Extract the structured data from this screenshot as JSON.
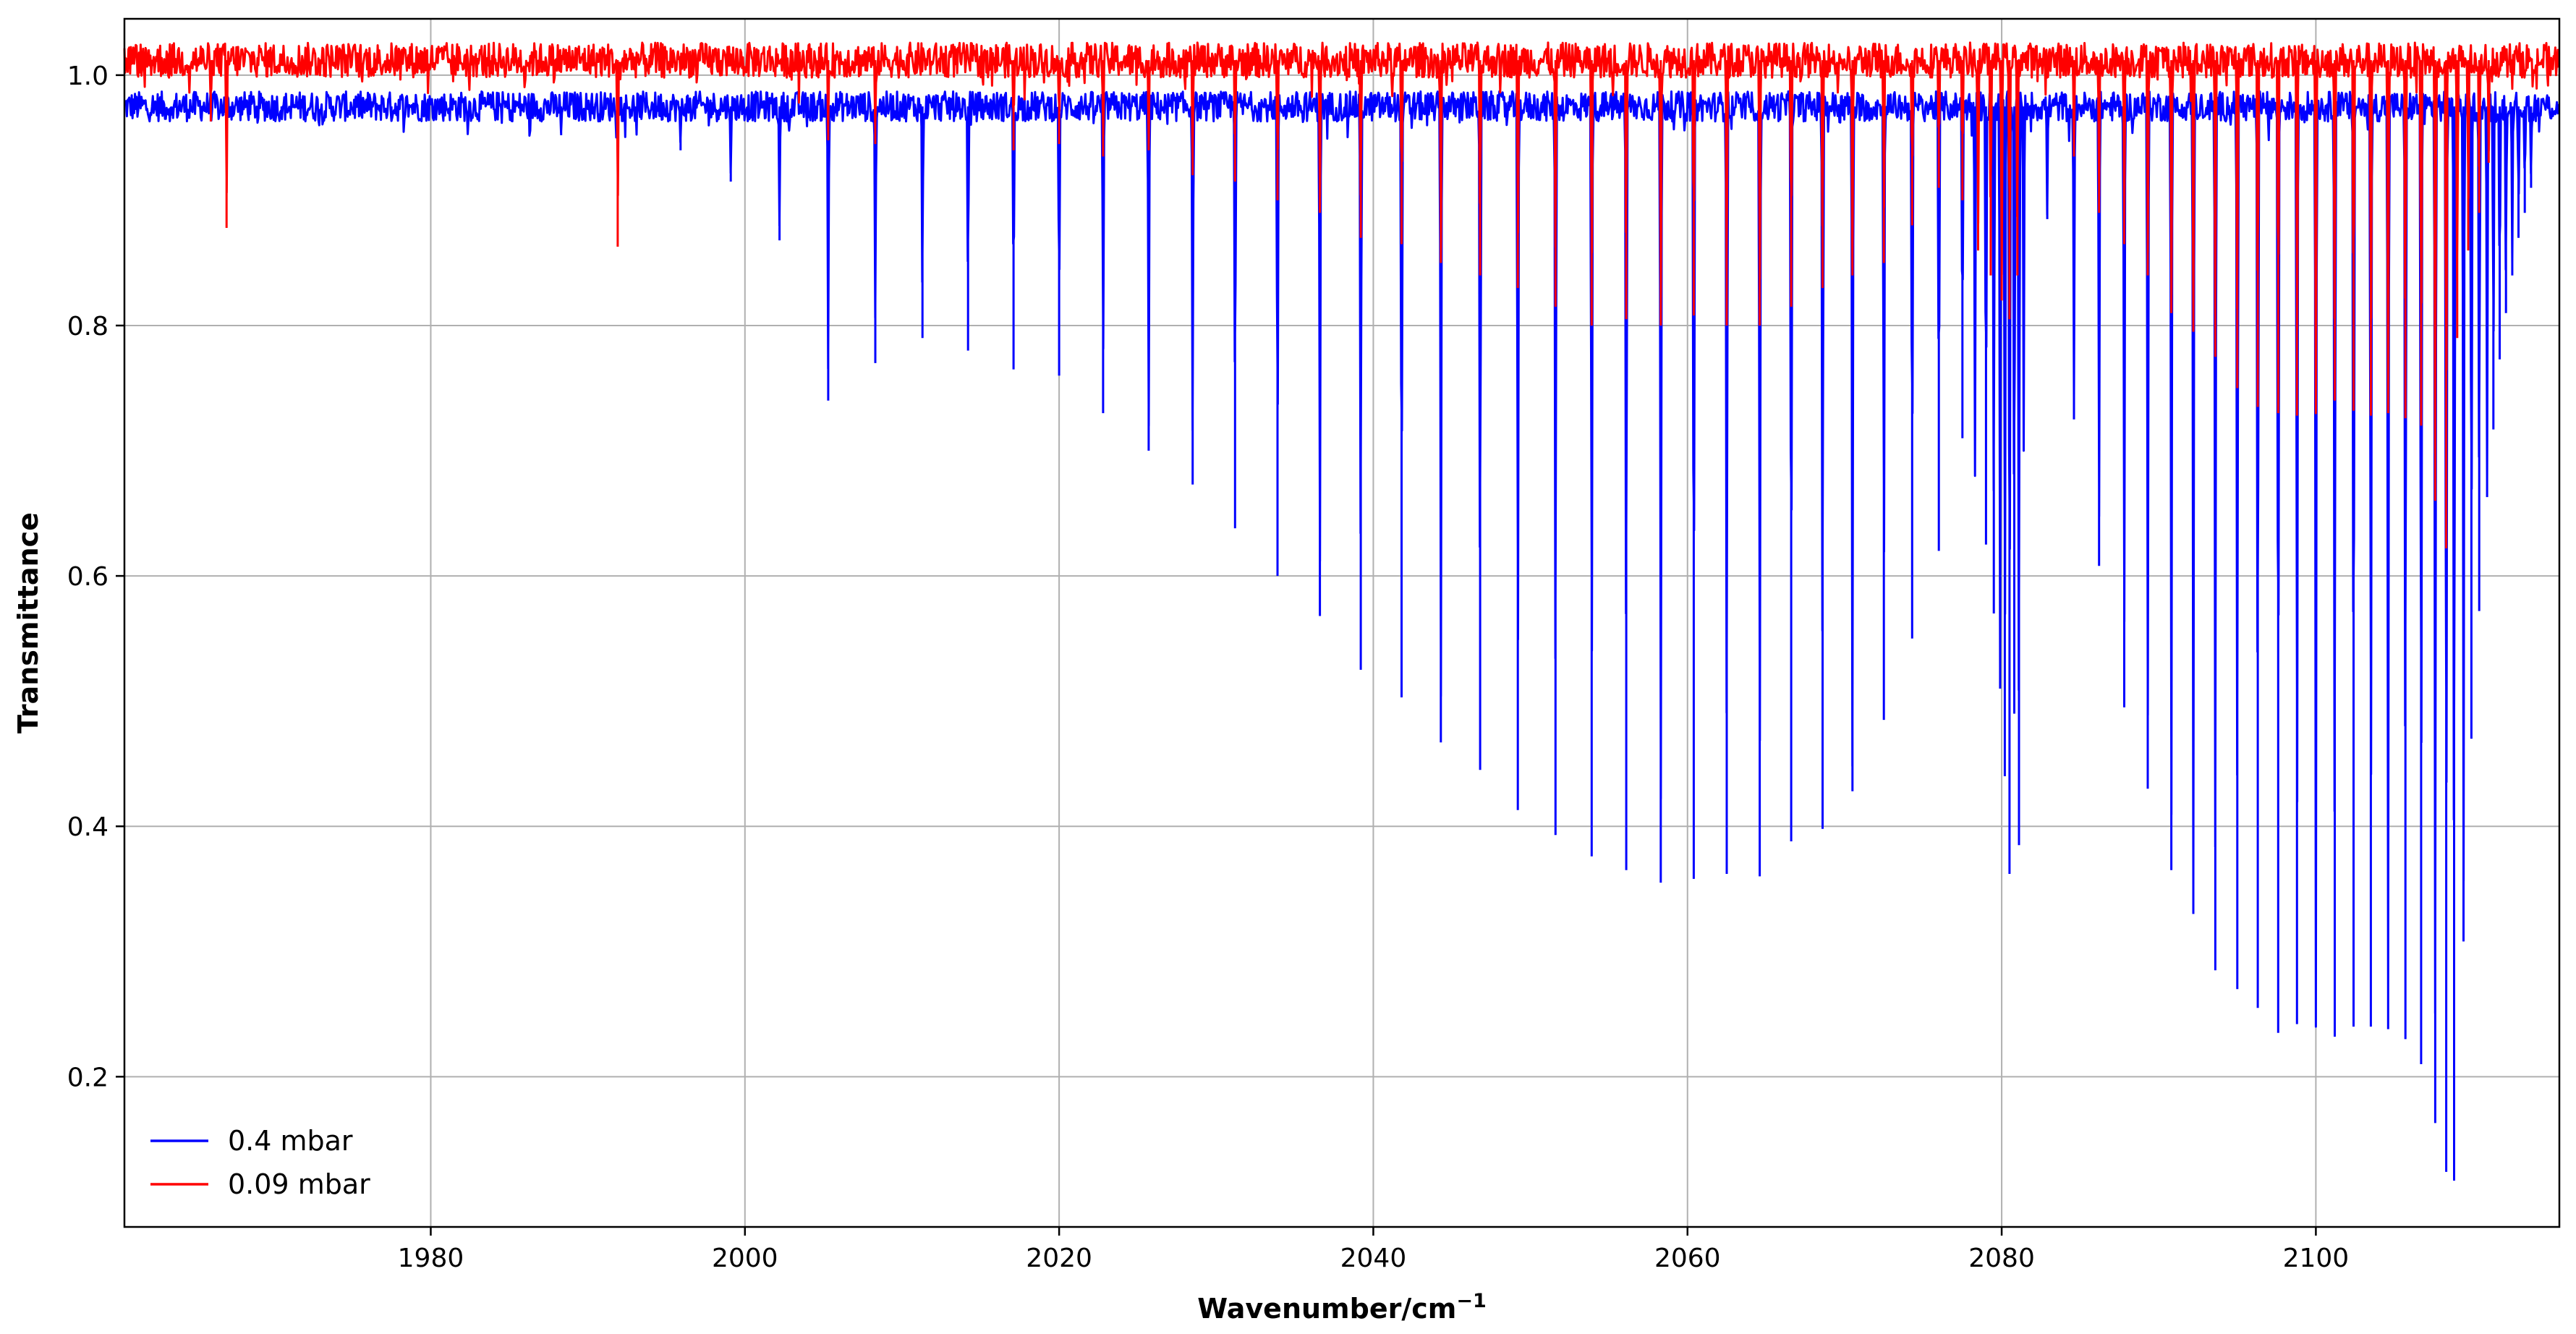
{
  "chart_data": {
    "type": "line",
    "xlabel": "Wavenumber/cm",
    "xlabel_sup": "−1",
    "ylabel": "Transmittance",
    "xlim": [
      1960.5,
      2115.5
    ],
    "ylim": [
      0.08,
      1.045
    ],
    "xticks": [
      1980,
      2000,
      2020,
      2040,
      2060,
      2080,
      2100
    ],
    "xtick_labels": [
      "1980",
      "2000",
      "2020",
      "2040",
      "2060",
      "2080",
      "2100"
    ],
    "yticks": [
      0.2,
      0.4,
      0.6,
      0.8,
      1.0
    ],
    "ytick_labels": [
      "0.2",
      "0.4",
      "0.6",
      "0.8",
      "1.0"
    ],
    "grid": true,
    "legend_position": "lower-left",
    "series": [
      {
        "name": "0.4 mbar",
        "color": "#0000ff",
        "baseline": 0.975,
        "noise_amplitude": 0.012,
        "lines": [
          [
            1963.5,
            0.968
          ],
          [
            1970.5,
            0.968
          ],
          [
            1977.5,
            0.963
          ],
          [
            1988.3,
            0.952
          ],
          [
            1993.0,
            0.963
          ],
          [
            1995.9,
            0.94
          ],
          [
            1999.1,
            0.915
          ],
          [
            2002.2,
            0.868
          ],
          [
            2005.3,
            0.74
          ],
          [
            2008.3,
            0.77
          ],
          [
            2011.3,
            0.79
          ],
          [
            2014.2,
            0.78
          ],
          [
            2017.1,
            0.765
          ],
          [
            2020.0,
            0.76
          ],
          [
            2022.8,
            0.73
          ],
          [
            2025.7,
            0.7
          ],
          [
            2028.5,
            0.673
          ],
          [
            2031.2,
            0.638
          ],
          [
            2033.9,
            0.6
          ],
          [
            2036.6,
            0.568
          ],
          [
            2039.2,
            0.525
          ],
          [
            2041.8,
            0.503
          ],
          [
            2044.3,
            0.467
          ],
          [
            2046.8,
            0.445
          ],
          [
            2049.2,
            0.413
          ],
          [
            2051.6,
            0.393
          ],
          [
            2053.9,
            0.376
          ],
          [
            2056.1,
            0.365
          ],
          [
            2058.3,
            0.355
          ],
          [
            2060.4,
            0.358
          ],
          [
            2062.5,
            0.362
          ],
          [
            2064.6,
            0.36
          ],
          [
            2066.6,
            0.388
          ],
          [
            2068.6,
            0.398
          ],
          [
            2070.5,
            0.428
          ],
          [
            2072.5,
            0.485
          ],
          [
            2074.3,
            0.55
          ],
          [
            2076.0,
            0.62
          ],
          [
            2077.5,
            0.71
          ],
          [
            2078.3,
            0.68
          ],
          [
            2079.0,
            0.625
          ],
          [
            2079.5,
            0.57
          ],
          [
            2079.9,
            0.51
          ],
          [
            2080.2,
            0.44
          ],
          [
            2080.5,
            0.362
          ],
          [
            2080.8,
            0.49
          ],
          [
            2081.1,
            0.385
          ],
          [
            2081.4,
            0.7
          ],
          [
            2082.9,
            0.885
          ],
          [
            2084.6,
            0.725
          ],
          [
            2086.2,
            0.608
          ],
          [
            2087.8,
            0.495
          ],
          [
            2089.3,
            0.43
          ],
          [
            2090.8,
            0.365
          ],
          [
            2092.2,
            0.33
          ],
          [
            2093.6,
            0.285
          ],
          [
            2095.0,
            0.27
          ],
          [
            2096.3,
            0.255
          ],
          [
            2097.6,
            0.235
          ],
          [
            2098.8,
            0.242
          ],
          [
            2100.0,
            0.24
          ],
          [
            2101.2,
            0.232
          ],
          [
            2102.4,
            0.24
          ],
          [
            2103.5,
            0.24
          ],
          [
            2104.6,
            0.238
          ],
          [
            2105.7,
            0.23
          ],
          [
            2106.7,
            0.21
          ],
          [
            2107.6,
            0.163
          ],
          [
            2108.3,
            0.124
          ],
          [
            2108.8,
            0.117
          ],
          [
            2109.4,
            0.308
          ],
          [
            2109.9,
            0.47
          ],
          [
            2110.4,
            0.572
          ],
          [
            2110.9,
            0.663
          ],
          [
            2111.3,
            0.717
          ],
          [
            2111.7,
            0.773
          ],
          [
            2112.1,
            0.81
          ],
          [
            2112.5,
            0.84
          ],
          [
            2112.9,
            0.87
          ],
          [
            2113.3,
            0.89
          ],
          [
            2113.7,
            0.91
          ]
        ]
      },
      {
        "name": "0.09 mbar",
        "color": "#ff0000",
        "baseline": 1.012,
        "noise_amplitude": 0.014,
        "lines": [
          [
            1966.0,
            0.963
          ],
          [
            1967.0,
            0.878
          ],
          [
            1991.9,
            0.863
          ],
          [
            2005.3,
            0.948
          ],
          [
            2008.3,
            0.945
          ],
          [
            2017.1,
            0.94
          ],
          [
            2020.0,
            0.945
          ],
          [
            2022.8,
            0.935
          ],
          [
            2025.7,
            0.94
          ],
          [
            2028.5,
            0.92
          ],
          [
            2031.2,
            0.915
          ],
          [
            2033.9,
            0.9
          ],
          [
            2036.6,
            0.89
          ],
          [
            2039.2,
            0.87
          ],
          [
            2041.8,
            0.865
          ],
          [
            2044.3,
            0.85
          ],
          [
            2046.8,
            0.84
          ],
          [
            2049.2,
            0.83
          ],
          [
            2051.6,
            0.815
          ],
          [
            2053.9,
            0.8
          ],
          [
            2056.1,
            0.805
          ],
          [
            2058.3,
            0.8
          ],
          [
            2060.4,
            0.808
          ],
          [
            2062.5,
            0.8
          ],
          [
            2064.6,
            0.8
          ],
          [
            2066.6,
            0.815
          ],
          [
            2068.6,
            0.83
          ],
          [
            2070.5,
            0.84
          ],
          [
            2072.5,
            0.85
          ],
          [
            2074.3,
            0.88
          ],
          [
            2076.0,
            0.91
          ],
          [
            2077.5,
            0.9
          ],
          [
            2078.5,
            0.86
          ],
          [
            2079.3,
            0.84
          ],
          [
            2080.0,
            0.82
          ],
          [
            2080.5,
            0.805
          ],
          [
            2081.0,
            0.84
          ],
          [
            2084.6,
            0.935
          ],
          [
            2086.2,
            0.89
          ],
          [
            2087.8,
            0.865
          ],
          [
            2089.3,
            0.84
          ],
          [
            2090.8,
            0.81
          ],
          [
            2092.2,
            0.795
          ],
          [
            2093.6,
            0.775
          ],
          [
            2095.0,
            0.75
          ],
          [
            2096.3,
            0.735
          ],
          [
            2097.6,
            0.73
          ],
          [
            2098.8,
            0.728
          ],
          [
            2100.0,
            0.73
          ],
          [
            2101.2,
            0.74
          ],
          [
            2102.4,
            0.732
          ],
          [
            2103.5,
            0.728
          ],
          [
            2104.6,
            0.73
          ],
          [
            2105.7,
            0.726
          ],
          [
            2106.7,
            0.72
          ],
          [
            2107.6,
            0.66
          ],
          [
            2108.3,
            0.622
          ],
          [
            2109.0,
            0.79
          ],
          [
            2109.7,
            0.86
          ],
          [
            2110.4,
            0.89
          ],
          [
            2111.0,
            0.93
          ]
        ]
      }
    ]
  }
}
